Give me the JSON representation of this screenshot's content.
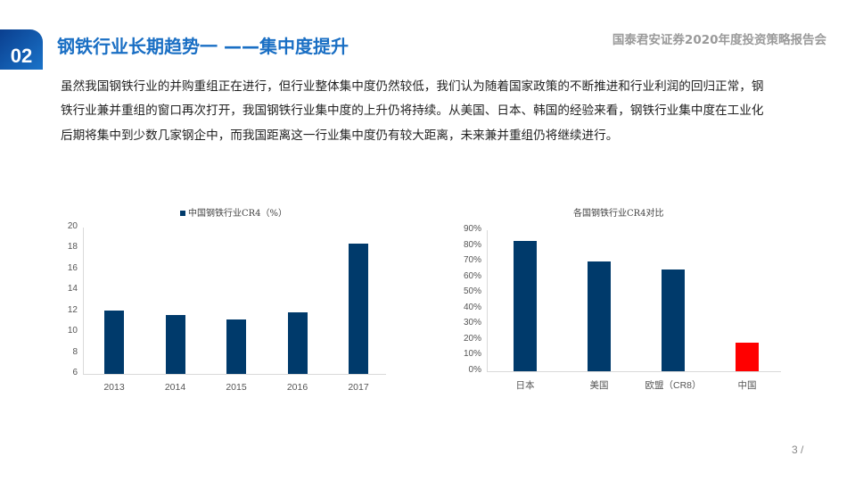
{
  "header": {
    "section_number": "02",
    "title": "钢铁行业长期趋势一 ——集中度提升",
    "report_name": "国泰君安证券2020年度投资策略报告会"
  },
  "body": {
    "paragraph": "虽然我国钢铁行业的并购重组正在进行，但行业整体集中度仍然较低，我们认为随着国家政策的不断推进和行业利润的回归正常，钢铁行业兼并重组的窗口再次打开，我国钢铁行业集中度的上升仍将持续。从美国、日本、韩国的经验来看，钢铁行业集中度在工业化后期将集中到少数几家钢企中，而我国距离这一行业集中度仍有较大距离，未来兼并重组仍将继续进行。"
  },
  "footer": {
    "page_number": "3 /"
  },
  "colors": {
    "accent": "#1a6fc4",
    "bar_primary": "#003a6b",
    "bar_highlight": "#ff0000"
  },
  "chart_data": [
    {
      "type": "bar",
      "title": "中国钢铁行业CR4（%）",
      "legend": [
        "中国钢铁行业CR4（%）"
      ],
      "legend_position": "top",
      "categories": [
        "2013",
        "2014",
        "2015",
        "2016",
        "2017"
      ],
      "values": [
        12.1,
        11.6,
        11.2,
        11.9,
        18.5
      ],
      "yticks": [
        "20",
        "18",
        "16",
        "14",
        "12",
        "10",
        "8",
        "6"
      ],
      "ylim": [
        6,
        20
      ],
      "xlabel": "",
      "ylabel": "",
      "grid": false
    },
    {
      "type": "bar",
      "title": "各国钢铁行业CR4对比",
      "categories": [
        "日本",
        "美国",
        "欧盟（CR8）",
        "中国"
      ],
      "values": [
        83,
        70,
        65,
        18
      ],
      "unit": "%",
      "bar_colors": [
        "#003a6b",
        "#003a6b",
        "#003a6b",
        "#ff0000"
      ],
      "yticks": [
        "90%",
        "80%",
        "70%",
        "60%",
        "50%",
        "40%",
        "30%",
        "20%",
        "10%",
        "0%"
      ],
      "ylim": [
        0,
        90
      ],
      "xlabel": "",
      "ylabel": "",
      "grid": false
    }
  ]
}
